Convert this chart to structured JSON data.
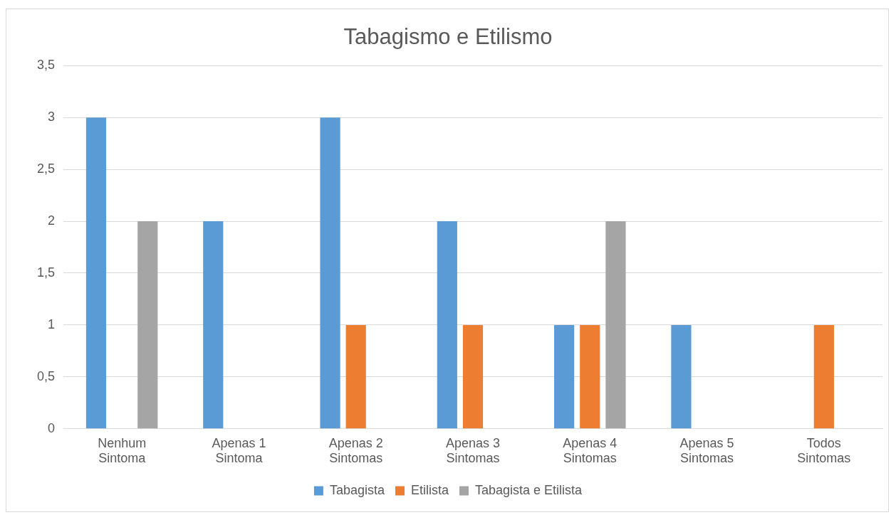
{
  "chart_data": {
    "type": "bar",
    "title": "Tabagismo e Etilismo",
    "categories": [
      "Nenhum Sintoma",
      "Apenas 1 Sintoma",
      "Apenas 2 Sintomas",
      "Apenas 3 Sintomas",
      "Apenas 4 Sintomas",
      "Apenas 5 Sintomas",
      "Todos Sintomas"
    ],
    "series": [
      {
        "name": "Tabagista",
        "color": "#5b9bd5",
        "values": [
          3,
          2,
          3,
          2,
          1,
          1,
          0
        ]
      },
      {
        "name": "Etilista",
        "color": "#ed7d31",
        "values": [
          0,
          0,
          1,
          1,
          1,
          0,
          1
        ]
      },
      {
        "name": "Tabagista e Etilista",
        "color": "#a5a5a5",
        "values": [
          2,
          0,
          0,
          0,
          2,
          0,
          0
        ]
      }
    ],
    "ylim": [
      0,
      3.5
    ],
    "yticks": [
      0,
      {
        "value": 0.5,
        "label": "0,5"
      },
      1,
      {
        "value": 1.5,
        "label": "1,5"
      },
      2,
      {
        "value": 2.5,
        "label": "2,5"
      },
      3,
      {
        "value": 3.5,
        "label": "3,5"
      }
    ],
    "grid": "y",
    "legend": "bottom"
  }
}
